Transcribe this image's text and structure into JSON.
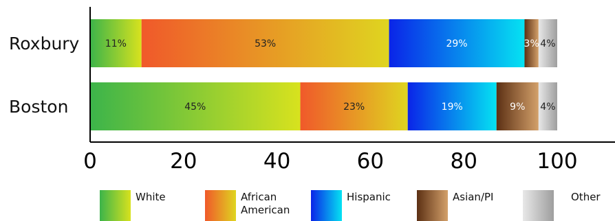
{
  "chart_data": {
    "type": "bar",
    "orientation": "horizontal",
    "stacked": true,
    "categories": [
      "Roxbury",
      "Boston"
    ],
    "xlim": [
      0,
      100
    ],
    "xticks": [
      "0",
      "20",
      "40",
      "60",
      "80",
      "100"
    ],
    "grid": false,
    "legend_position": "bottom",
    "series": [
      {
        "name": "White",
        "legend_lines": [
          "White"
        ],
        "values": [
          11,
          45
        ],
        "labels": [
          "11%",
          "45%"
        ],
        "colors": [
          "#3cb44a",
          "#d8e21e"
        ],
        "text_color": "#222222"
      },
      {
        "name": "African American",
        "legend_lines": [
          "African",
          "American"
        ],
        "values": [
          53,
          23
        ],
        "labels": [
          "53%",
          "23%"
        ],
        "colors": [
          "#f0592a",
          "#dfd520"
        ],
        "text_color": "#222222"
      },
      {
        "name": "Hispanic",
        "legend_lines": [
          "Hispanic"
        ],
        "values": [
          29,
          19
        ],
        "labels": [
          "29%",
          "19%"
        ],
        "colors": [
          "#0a24e8",
          "#05e2f2"
        ],
        "text_color": "#ffffff"
      },
      {
        "name": "Asian/PI",
        "legend_lines": [
          "Asian/PI"
        ],
        "values": [
          3,
          9
        ],
        "labels": [
          "3%",
          "9%"
        ],
        "colors": [
          "#5c3014",
          "#d3a06a"
        ],
        "text_color": "#ffffff"
      },
      {
        "name": "Other",
        "legend_lines": [
          "Other"
        ],
        "values": [
          4,
          4
        ],
        "labels": [
          "4%",
          "4%"
        ],
        "colors": [
          "#e8e8e8",
          "#9e9e9e"
        ],
        "text_color": "#222222"
      }
    ]
  }
}
